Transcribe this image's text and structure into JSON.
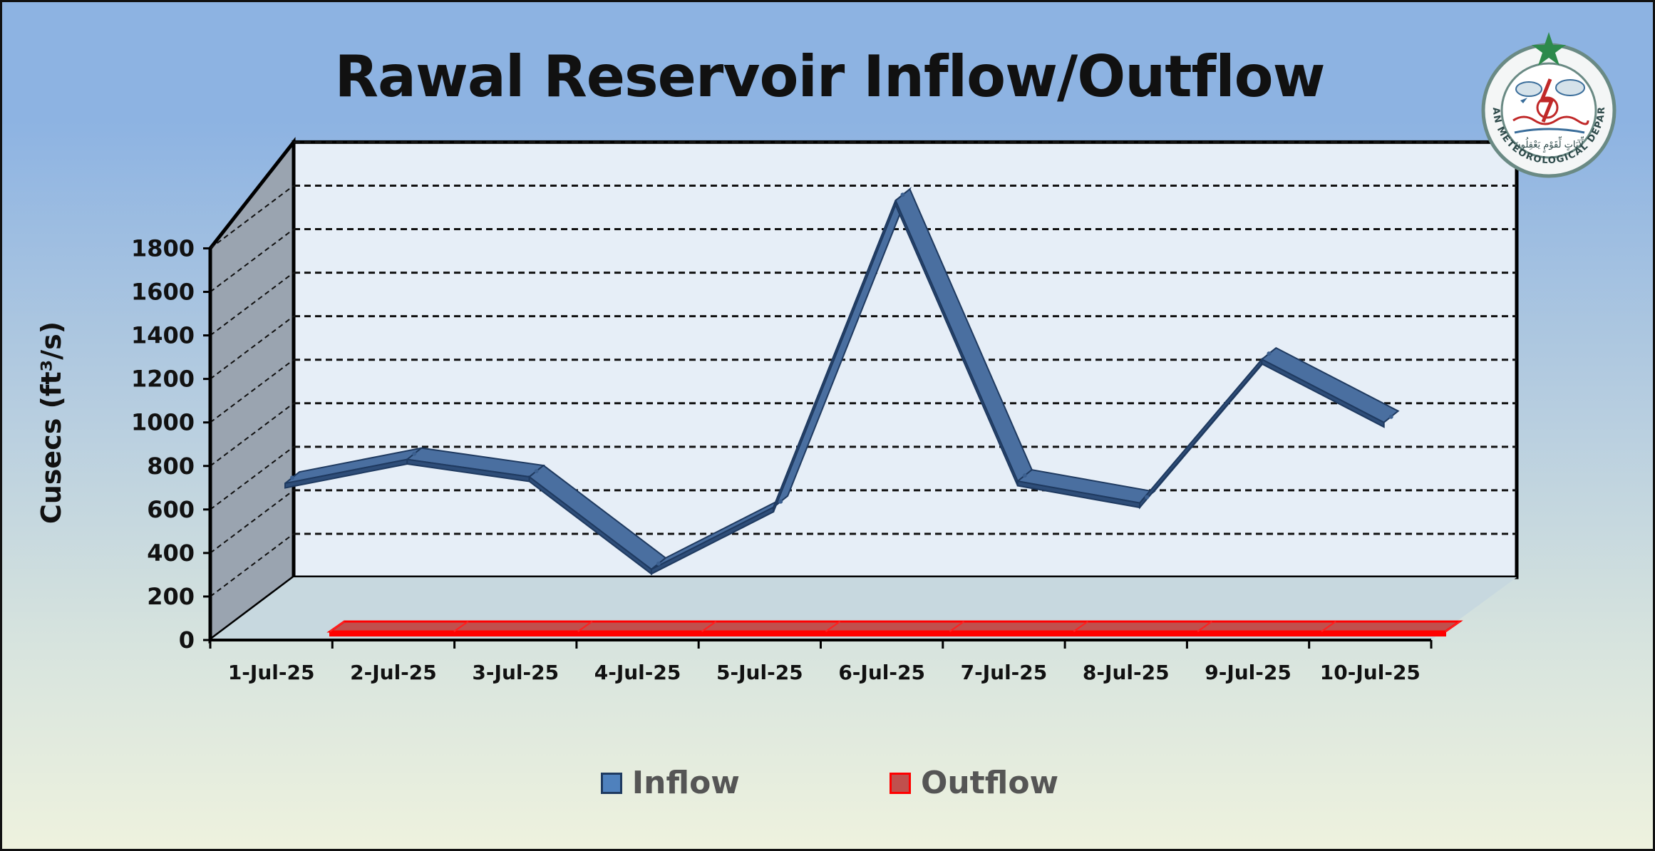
{
  "chart_data": {
    "type": "line",
    "title": "Rawal Reservoir Inflow/Outflow",
    "ylabel": "Cusecs (ft³/s)",
    "xlabel": "",
    "ylim": [
      0,
      1800
    ],
    "yticks": [
      "0",
      "200",
      "400",
      "600",
      "800",
      "1000",
      "1200",
      "1400",
      "1600",
      "1800"
    ],
    "categories": [
      "1-Jul-25",
      "2-Jul-25",
      "3-Jul-25",
      "4-Jul-25",
      "5-Jul-25",
      "6-Jul-25",
      "7-Jul-25",
      "8-Jul-25",
      "9-Jul-25",
      "10-Jul-25"
    ],
    "series": [
      {
        "name": "Inflow",
        "color": "#3b5f8f",
        "values": [
          530,
          640,
          560,
          135,
          420,
          1830,
          540,
          440,
          1100,
          810
        ]
      },
      {
        "name": "Outflow",
        "color": "#e00000",
        "values": [
          0,
          0,
          0,
          0,
          0,
          0,
          0,
          0,
          0,
          0
        ]
      }
    ],
    "grid": true,
    "legend_position": "bottom"
  },
  "legend": {
    "inflow_label": "Inflow",
    "outflow_label": "Outflow",
    "inflow_color": "#4f81bd",
    "outflow_color": "#c0504d"
  },
  "logo": {
    "text": "PAKISTAN METEOROLOGICAL DEPARTMENT",
    "motto": "لِّآيَاتٍ لِّقَوْمٍ يَعْقِلُونَ"
  }
}
